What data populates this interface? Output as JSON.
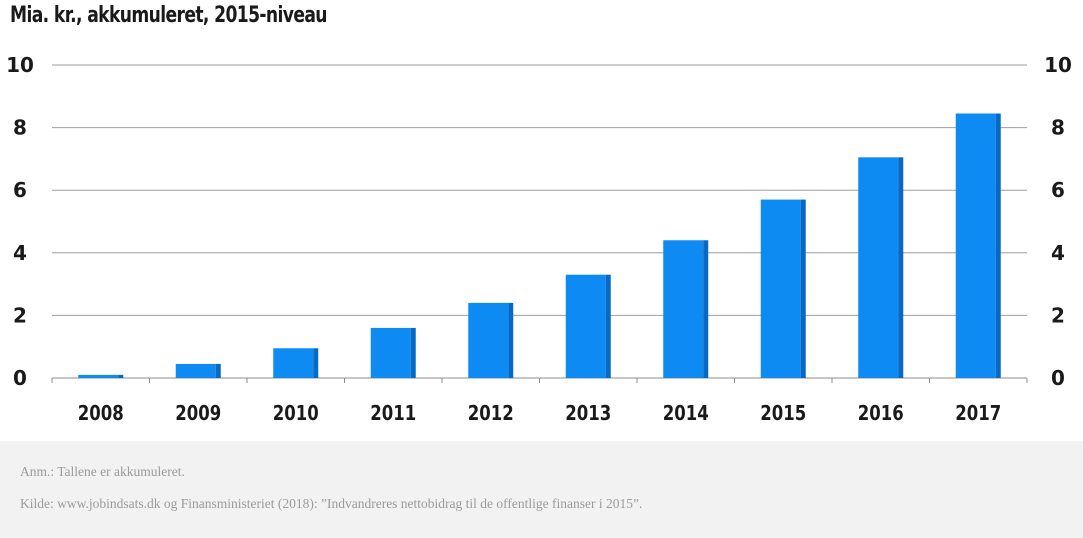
{
  "chart_data": {
    "type": "bar",
    "title": "Mia. kr., akkumuleret, 2015-niveau",
    "categories": [
      "2008",
      "2009",
      "2010",
      "2011",
      "2012",
      "2013",
      "2014",
      "2015",
      "2016",
      "2017"
    ],
    "values": [
      0.1,
      0.45,
      0.95,
      1.6,
      2.4,
      3.3,
      4.4,
      5.7,
      7.05,
      8.45
    ],
    "ylim": [
      0,
      10
    ],
    "yticks": [
      "0",
      "2",
      "4",
      "6",
      "8",
      "10"
    ],
    "right_axis_ticks": true,
    "grid": true,
    "bar_color": "#0d8bf2",
    "bar_side_color": "#0669c4"
  },
  "notes": {
    "anm": "Anm.: Tallene er akkumuleret.",
    "kilde": "Kilde: www.jobindsats.dk og Finansministeriet (2018): ”Indvandreres nettobidrag til de offentlige finanser i 2015”."
  }
}
